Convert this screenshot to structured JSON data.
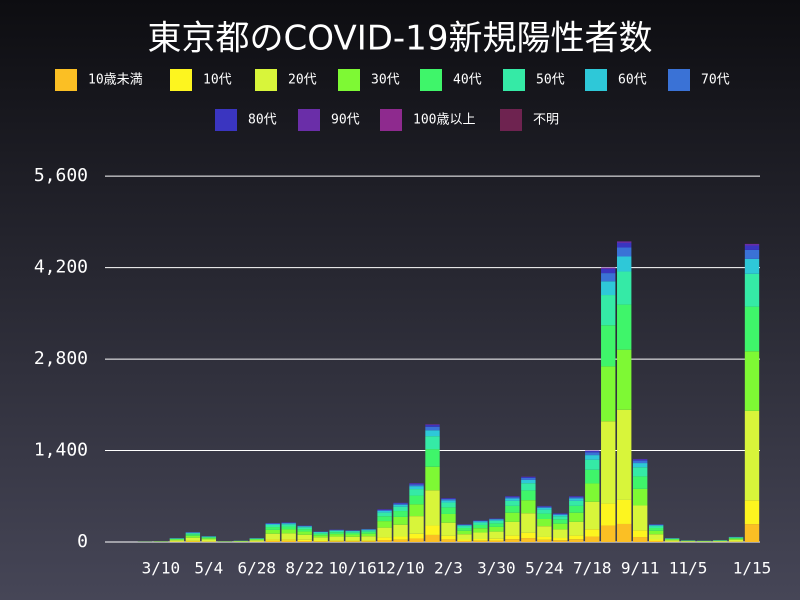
{
  "chart_data": {
    "type": "bar",
    "stacked": true,
    "title": "東京都のCOVID-19新規陽性者数",
    "categories": [
      null,
      null,
      null,
      "3/10",
      null,
      null,
      "5/4",
      null,
      null,
      "6/28",
      null,
      null,
      "8/22",
      null,
      null,
      "10/16",
      null,
      null,
      "12/10",
      null,
      null,
      "2/3",
      null,
      null,
      "3/30",
      null,
      null,
      "5/24",
      null,
      null,
      "7/18",
      null,
      null,
      "9/11",
      null,
      null,
      "11/5",
      null,
      null,
      null,
      "1/15"
    ],
    "ylim": [
      0,
      6000
    ],
    "yticks": [
      0,
      {
        "value": 1400,
        "label": "1,400"
      },
      {
        "value": 2800,
        "label": "2,800"
      },
      {
        "value": 4200,
        "label": "4,200"
      },
      {
        "value": 5600,
        "label": "5,600"
      }
    ],
    "grid": true,
    "series": [
      {
        "name": "10歳未満",
        "color": "#fbbf24",
        "values": [
          0,
          0,
          0,
          1,
          4,
          9,
          5,
          1,
          1,
          4,
          17,
          18,
          15,
          10,
          11,
          11,
          12,
          30,
          36,
          54,
          108,
          40,
          16,
          20,
          22,
          42,
          60,
          33,
          26,
          42,
          84,
          252,
          276,
          76,
          16,
          4,
          2,
          1,
          2,
          5,
          274
        ]
      },
      {
        "name": "10代",
        "color": "#fdf51f",
        "values": [
          0,
          0,
          0,
          1,
          5,
          12,
          7,
          1,
          2,
          5,
          23,
          24,
          20,
          13,
          15,
          14,
          16,
          40,
          48,
          72,
          144,
          54,
          22,
          26,
          29,
          56,
          80,
          44,
          35,
          56,
          112,
          336,
          368,
          102,
          22,
          5,
          2,
          2,
          2,
          6,
          365
        ]
      },
      {
        "name": "20代",
        "color": "#d8f53a",
        "values": [
          0,
          0,
          2,
          3,
          18,
          45,
          27,
          3,
          6,
          18,
          87,
          90,
          75,
          48,
          57,
          54,
          60,
          150,
          180,
          270,
          540,
          201,
          81,
          99,
          108,
          210,
          300,
          165,
          132,
          210,
          420,
          1260,
          1380,
          381,
          81,
          18,
          8,
          6,
          9,
          24,
          1368
        ]
      },
      {
        "name": "30代",
        "color": "#7ef934",
        "values": [
          0,
          0,
          1,
          2,
          12,
          30,
          18,
          2,
          4,
          12,
          58,
          60,
          50,
          32,
          38,
          36,
          40,
          100,
          120,
          180,
          360,
          134,
          54,
          66,
          72,
          140,
          200,
          110,
          88,
          140,
          280,
          840,
          920,
          254,
          54,
          12,
          5,
          4,
          6,
          16,
          912
        ]
      },
      {
        "name": "40代",
        "color": "#3ff56a",
        "values": [
          0,
          0,
          1,
          2,
          9,
          23,
          14,
          2,
          3,
          9,
          44,
          45,
          38,
          24,
          29,
          27,
          30,
          75,
          90,
          135,
          270,
          101,
          41,
          50,
          54,
          105,
          150,
          83,
          66,
          105,
          210,
          630,
          690,
          191,
          41,
          9,
          4,
          3,
          5,
          12,
          684
        ]
      },
      {
        "name": "50代",
        "color": "#35eaa6",
        "values": [
          0,
          0,
          1,
          1,
          7,
          17,
          10,
          1,
          2,
          7,
          32,
          33,
          28,
          18,
          21,
          20,
          22,
          55,
          66,
          99,
          198,
          74,
          30,
          36,
          40,
          77,
          110,
          61,
          48,
          77,
          154,
          462,
          506,
          140,
          30,
          7,
          3,
          2,
          3,
          9,
          502
        ]
      },
      {
        "name": "60代",
        "color": "#2ec8d8",
        "values": [
          0,
          0,
          0,
          0,
          3,
          8,
          5,
          0,
          1,
          3,
          15,
          15,
          13,
          8,
          10,
          9,
          10,
          25,
          30,
          45,
          90,
          34,
          14,
          17,
          18,
          35,
          50,
          28,
          22,
          35,
          70,
          210,
          230,
          64,
          14,
          3,
          1,
          1,
          2,
          4,
          228
        ]
      },
      {
        "name": "70代",
        "color": "#3a72d6",
        "values": [
          0,
          0,
          0,
          0,
          2,
          5,
          3,
          0,
          0,
          2,
          9,
          9,
          8,
          5,
          6,
          5,
          6,
          15,
          18,
          27,
          54,
          20,
          8,
          10,
          11,
          21,
          30,
          17,
          13,
          21,
          42,
          126,
          138,
          38,
          8,
          2,
          0,
          1,
          1,
          2,
          137
        ]
      },
      {
        "name": "80代",
        "color": "#3a35c0",
        "values": [
          0,
          0,
          0,
          0,
          1,
          2,
          1,
          0,
          0,
          1,
          4,
          5,
          4,
          2,
          3,
          3,
          3,
          8,
          9,
          14,
          27,
          10,
          4,
          5,
          5,
          11,
          15,
          8,
          7,
          11,
          21,
          63,
          69,
          19,
          4,
          1,
          0,
          0,
          0,
          1,
          68
        ]
      },
      {
        "name": "90代",
        "color": "#6a2ea8",
        "values": [
          0,
          0,
          0,
          0,
          0,
          1,
          0,
          0,
          0,
          0,
          1,
          2,
          1,
          1,
          1,
          1,
          1,
          3,
          3,
          5,
          9,
          3,
          1,
          2,
          2,
          4,
          5,
          3,
          2,
          4,
          7,
          21,
          23,
          6,
          1,
          0,
          0,
          0,
          0,
          0,
          23
        ]
      },
      {
        "name": "100歳以上",
        "color": "#8e2a8e",
        "values": [
          0,
          0,
          0,
          0,
          0,
          0,
          0,
          0,
          0,
          0,
          0,
          0,
          0,
          0,
          0,
          0,
          0,
          0,
          0,
          1,
          1,
          0,
          0,
          0,
          0,
          0,
          0,
          0,
          0,
          0,
          0,
          1,
          1,
          0,
          0,
          0,
          0,
          0,
          0,
          0,
          1
        ]
      },
      {
        "name": "不明",
        "color": "#6e2350",
        "values": [
          0,
          0,
          0,
          0,
          0,
          0,
          0,
          0,
          0,
          0,
          0,
          0,
          0,
          0,
          0,
          0,
          0,
          0,
          0,
          0,
          0,
          0,
          0,
          0,
          0,
          0,
          0,
          0,
          0,
          0,
          0,
          0,
          1,
          0,
          0,
          0,
          0,
          0,
          0,
          0,
          1
        ]
      }
    ]
  }
}
